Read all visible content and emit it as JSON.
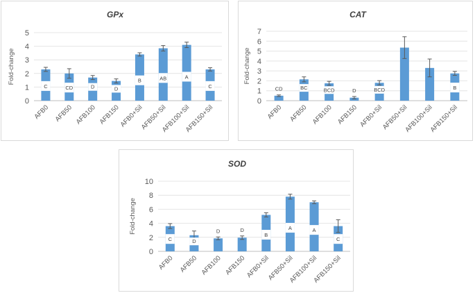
{
  "chart_data": [
    {
      "type": "bar",
      "title": "GPx",
      "xlabel": "",
      "ylabel": "Fold-change",
      "ylim": [
        0,
        5
      ],
      "yticks": [
        0,
        1,
        2,
        3,
        4,
        5
      ],
      "categories": [
        "AFB0",
        "AFB50",
        "AFB100",
        "AFB150",
        "AFB0+Sil",
        "AFB50+Sil",
        "AFB100+Sil",
        "AFB150+Sil"
      ],
      "series": [
        {
          "values": [
            2.3,
            2.0,
            1.7,
            1.45,
            3.4,
            3.85,
            4.1,
            2.3
          ]
        }
      ],
      "errors": [
        0.15,
        0.35,
        0.15,
        0.15,
        0.12,
        0.2,
        0.2,
        0.12
      ],
      "labels": [
        "C",
        "CD",
        "D",
        "D",
        "B",
        "AB",
        "A",
        "C"
      ],
      "grid": true,
      "legend": "none",
      "color": "#5b9bd5"
    },
    {
      "type": "bar",
      "title": "CAT",
      "xlabel": "",
      "ylabel": "Fold-change",
      "ylim": [
        0,
        7
      ],
      "yticks": [
        0,
        1,
        2,
        3,
        4,
        5,
        6,
        7
      ],
      "categories": [
        "AFB0",
        "AFB50",
        "AFB100",
        "AFB150",
        "AFB0+Sil",
        "AFB50+Sil",
        "AFB100+Sil",
        "AFB150+Sil"
      ],
      "series": [
        {
          "values": [
            0.5,
            2.15,
            1.75,
            0.3,
            1.8,
            5.35,
            3.3,
            2.75
          ]
        }
      ],
      "errors": [
        0.08,
        0.25,
        0.2,
        0.12,
        0.22,
        1.1,
        0.9,
        0.2
      ],
      "labels": [
        "CD",
        "BC",
        "BCD",
        "D",
        "BCD",
        "",
        "",
        "B"
      ],
      "grid": true,
      "legend": "none",
      "color": "#5b9bd5"
    },
    {
      "type": "bar",
      "title": "SOD",
      "xlabel": "",
      "ylabel": "Fold-change",
      "ylim": [
        0,
        10
      ],
      "yticks": [
        0,
        2,
        4,
        6,
        8,
        10
      ],
      "categories": [
        "AFB0",
        "AFB50",
        "AFB100",
        "AFB150",
        "AFB0+Sil",
        "AFB50+Sil",
        "AFB100+Sil",
        "AFB150+Sil"
      ],
      "series": [
        {
          "values": [
            3.6,
            2.3,
            1.85,
            1.95,
            5.2,
            7.8,
            7.0,
            3.6
          ]
        }
      ],
      "errors": [
        0.35,
        0.6,
        0.2,
        0.25,
        0.3,
        0.35,
        0.2,
        0.9
      ],
      "labels": [
        "C",
        "D",
        "D",
        "D",
        "B",
        "A",
        "A",
        "C"
      ],
      "grid": true,
      "legend": "none",
      "color": "#5b9bd5"
    }
  ]
}
